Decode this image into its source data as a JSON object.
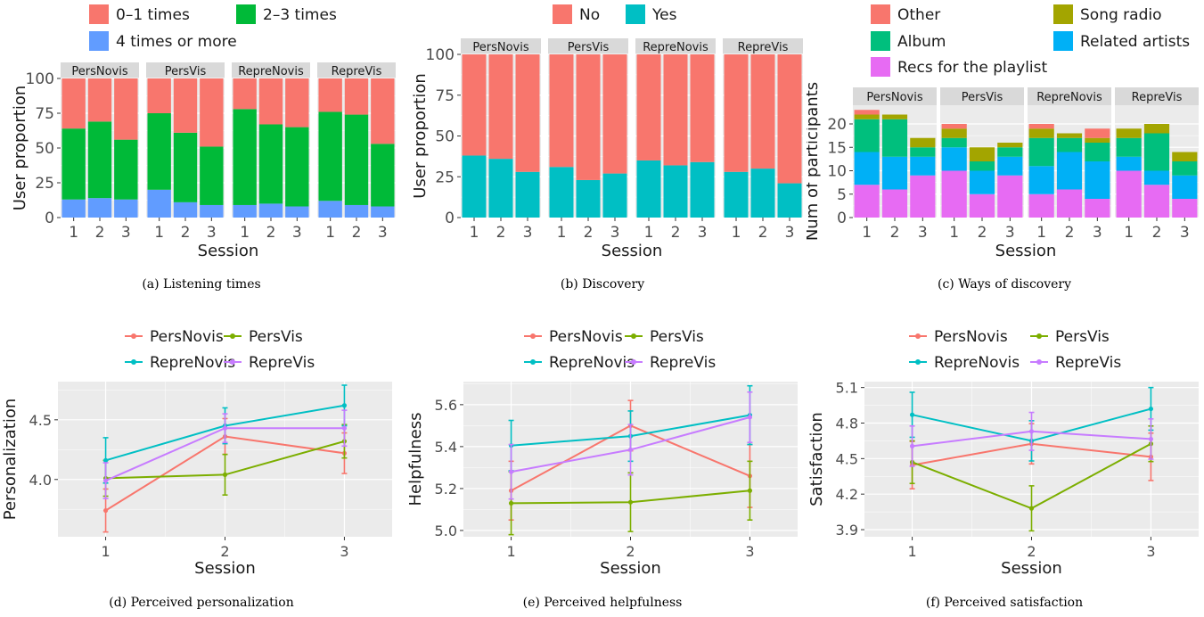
{
  "figure": {
    "captions": [
      "(a) Listening times",
      "(b) Discovery",
      "(c) Ways of discovery",
      "(d) Perceived personalization",
      "(e) Perceived helpfulness",
      "(f) Perceived satisfaction"
    ]
  },
  "colors": {
    "panel_bg": "#ebebeb",
    "grid": "#ffffff",
    "strip_bg": "#d9d9d9"
  },
  "chart_data": [
    {
      "type": "bar",
      "stacked": true,
      "facets": [
        "PersNovis",
        "PersVis",
        "RepreNovis",
        "RepreVis"
      ],
      "categories": [
        "1",
        "2",
        "3"
      ],
      "xlabel": "Session",
      "ylabel": "User proportion",
      "ylim": [
        0,
        100
      ],
      "yticks": [
        0,
        25,
        50,
        75,
        100
      ],
      "legend": [
        {
          "name": "0–1 times",
          "color": "#f8766d"
        },
        {
          "name": "2–3 times",
          "color": "#00ba38"
        },
        {
          "name": "4 times or more",
          "color": "#619cff"
        }
      ],
      "series": [
        {
          "name": "4 times or more",
          "color": "#619cff",
          "values": [
            [
              13,
              14,
              13
            ],
            [
              20,
              11,
              9
            ],
            [
              9,
              10,
              8
            ],
            [
              12,
              9,
              8
            ]
          ]
        },
        {
          "name": "2–3 times",
          "color": "#00ba38",
          "values": [
            [
              51,
              55,
              43
            ],
            [
              55,
              50,
              42
            ],
            [
              69,
              57,
              57
            ],
            [
              64,
              65,
              45
            ]
          ]
        },
        {
          "name": "0–1 times",
          "color": "#f8766d",
          "values": [
            [
              36,
              31,
              44
            ],
            [
              25,
              39,
              49
            ],
            [
              22,
              33,
              35
            ],
            [
              24,
              26,
              47
            ]
          ]
        }
      ]
    },
    {
      "type": "bar",
      "stacked": true,
      "facets": [
        "PersNovis",
        "PersVis",
        "RepreNovis",
        "RepreVis"
      ],
      "categories": [
        "1",
        "2",
        "3"
      ],
      "xlabel": "Session",
      "ylabel": "User proportion",
      "ylim": [
        0,
        100
      ],
      "yticks": [
        0,
        25,
        50,
        75,
        100
      ],
      "legend": [
        {
          "name": "No",
          "color": "#f8766d"
        },
        {
          "name": "Yes",
          "color": "#00bfc4"
        }
      ],
      "series": [
        {
          "name": "Yes",
          "color": "#00bfc4",
          "values": [
            [
              38,
              36,
              28
            ],
            [
              31,
              23,
              27
            ],
            [
              35,
              32,
              34
            ],
            [
              28,
              30,
              21
            ]
          ]
        },
        {
          "name": "No",
          "color": "#f8766d",
          "values": [
            [
              62,
              64,
              72
            ],
            [
              69,
              77,
              73
            ],
            [
              65,
              68,
              66
            ],
            [
              72,
              70,
              79
            ]
          ]
        }
      ]
    },
    {
      "type": "bar",
      "stacked": true,
      "facets": [
        "PersNovis",
        "PersVis",
        "RepreNovis",
        "RepreVis"
      ],
      "categories": [
        "1",
        "2",
        "3"
      ],
      "xlabel": "Session",
      "ylabel": "Num of participants",
      "ylim": [
        0,
        24
      ],
      "yticks": [
        0,
        5,
        10,
        15,
        20
      ],
      "legend": [
        {
          "name": "Other",
          "color": "#f8766d"
        },
        {
          "name": "Song radio",
          "color": "#a3a500"
        },
        {
          "name": "Album",
          "color": "#00bf7d"
        },
        {
          "name": "Related artists",
          "color": "#00b0f6"
        },
        {
          "name": "Recs for the playlist",
          "color": "#e76bf3"
        }
      ],
      "series": [
        {
          "name": "Recs for the playlist",
          "color": "#e76bf3",
          "values": [
            [
              7,
              6,
              9
            ],
            [
              10,
              5,
              9
            ],
            [
              5,
              6,
              4
            ],
            [
              10,
              7,
              4
            ]
          ]
        },
        {
          "name": "Related artists",
          "color": "#00b0f6",
          "values": [
            [
              7,
              7,
              4
            ],
            [
              5,
              5,
              4
            ],
            [
              6,
              8,
              8
            ],
            [
              3,
              3,
              5
            ]
          ]
        },
        {
          "name": "Album",
          "color": "#00bf7d",
          "values": [
            [
              7,
              8,
              2
            ],
            [
              2,
              2,
              2
            ],
            [
              6,
              3,
              4
            ],
            [
              4,
              8,
              3
            ]
          ]
        },
        {
          "name": "Song radio",
          "color": "#a3a500",
          "values": [
            [
              1,
              1,
              2
            ],
            [
              2,
              3,
              1
            ],
            [
              2,
              1,
              1
            ],
            [
              2,
              2,
              2
            ]
          ]
        },
        {
          "name": "Other",
          "color": "#f8766d",
          "values": [
            [
              1,
              0,
              0
            ],
            [
              1,
              0,
              0
            ],
            [
              1,
              0,
              2
            ],
            [
              0,
              0,
              0
            ]
          ]
        }
      ]
    },
    {
      "type": "line",
      "error_bars": true,
      "x": [
        1,
        2,
        3
      ],
      "xlabel": "Session",
      "ylabel": "Personalization",
      "ylim": [
        3.52,
        4.82
      ],
      "yticks": [
        4.0,
        4.5
      ],
      "ytick_labels": [
        "4.0",
        "4.5"
      ],
      "series": [
        {
          "name": "PersNovis",
          "color": "#f8766d",
          "values": [
            3.74,
            4.36,
            4.22
          ],
          "err": [
            0.18,
            0.15,
            0.17
          ]
        },
        {
          "name": "PersVis",
          "color": "#7cae00",
          "values": [
            4.01,
            4.04,
            4.32
          ],
          "err": [
            0.15,
            0.17,
            0.14
          ]
        },
        {
          "name": "RepreNovis",
          "color": "#00bfc4",
          "values": [
            4.16,
            4.45,
            4.62
          ],
          "err": [
            0.19,
            0.15,
            0.17
          ]
        },
        {
          "name": "RepreVis",
          "color": "#c77cff",
          "values": [
            3.99,
            4.43,
            4.43
          ],
          "err": [
            0.15,
            0.12,
            0.15
          ]
        }
      ]
    },
    {
      "type": "line",
      "error_bars": true,
      "x": [
        1,
        2,
        3
      ],
      "xlabel": "Session",
      "ylabel": "Helpfulness",
      "ylim": [
        4.97,
        5.71
      ],
      "yticks": [
        5.0,
        5.2,
        5.4,
        5.6
      ],
      "ytick_labels": [
        "5.0",
        "5.2",
        "5.4",
        "5.6"
      ],
      "series": [
        {
          "name": "PersNovis",
          "color": "#f8766d",
          "values": [
            5.19,
            5.5,
            5.26
          ],
          "err": [
            0.14,
            0.12,
            0.15
          ]
        },
        {
          "name": "PersVis",
          "color": "#7cae00",
          "values": [
            5.13,
            5.135,
            5.19
          ],
          "err": [
            0.15,
            0.14,
            0.14
          ]
        },
        {
          "name": "RepreNovis",
          "color": "#00bfc4",
          "values": [
            5.405,
            5.45,
            5.55
          ],
          "err": [
            0.12,
            0.12,
            0.14
          ]
        },
        {
          "name": "RepreVis",
          "color": "#c77cff",
          "values": [
            5.28,
            5.385,
            5.54
          ],
          "err": [
            0.13,
            0.12,
            0.12
          ]
        }
      ]
    },
    {
      "type": "line",
      "error_bars": true,
      "x": [
        1,
        2,
        3
      ],
      "xlabel": "Session",
      "ylabel": "Satisfaction",
      "ylim": [
        3.84,
        5.15
      ],
      "yticks": [
        3.9,
        4.2,
        4.5,
        4.8,
        5.1
      ],
      "ytick_labels": [
        "3.9",
        "4.2",
        "4.5",
        "4.8",
        "5.1"
      ],
      "series": [
        {
          "name": "PersNovis",
          "color": "#f8766d",
          "values": [
            4.445,
            4.625,
            4.515
          ],
          "err": [
            0.2,
            0.17,
            0.2
          ]
        },
        {
          "name": "PersVis",
          "color": "#7cae00",
          "values": [
            4.47,
            4.08,
            4.625
          ],
          "err": [
            0.18,
            0.19,
            0.15
          ]
        },
        {
          "name": "RepreNovis",
          "color": "#00bfc4",
          "values": [
            4.87,
            4.65,
            4.92
          ],
          "err": [
            0.19,
            0.17,
            0.18
          ]
        },
        {
          "name": "RepreVis",
          "color": "#c77cff",
          "values": [
            4.605,
            4.73,
            4.665
          ],
          "err": [
            0.17,
            0.16,
            0.17
          ]
        }
      ]
    }
  ]
}
